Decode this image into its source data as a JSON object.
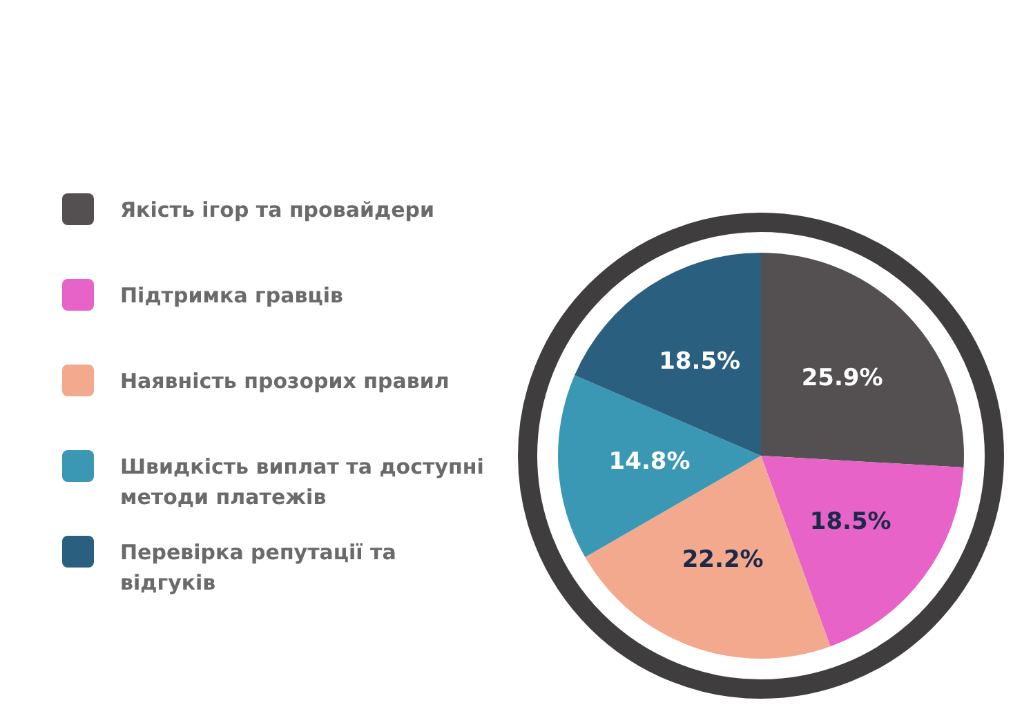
{
  "chart_data": {
    "type": "pie",
    "categories": [
      "Якість ігор та провайдери",
      "Підтримка гравців",
      "Наявність прозорих правил",
      "Швидкість виплат та доступні методи платежів",
      "Перевірка репутації та відгуків"
    ],
    "values": [
      25.9,
      18.5,
      22.2,
      14.8,
      18.5
    ],
    "colors": [
      "#545052",
      "#e763c8",
      "#f2a98e",
      "#3a98b5",
      "#2b5f80"
    ],
    "value_labels": [
      "25.9%",
      "18.5%",
      "22.2%",
      "14.8%",
      "18.5%"
    ],
    "legend": "left"
  }
}
